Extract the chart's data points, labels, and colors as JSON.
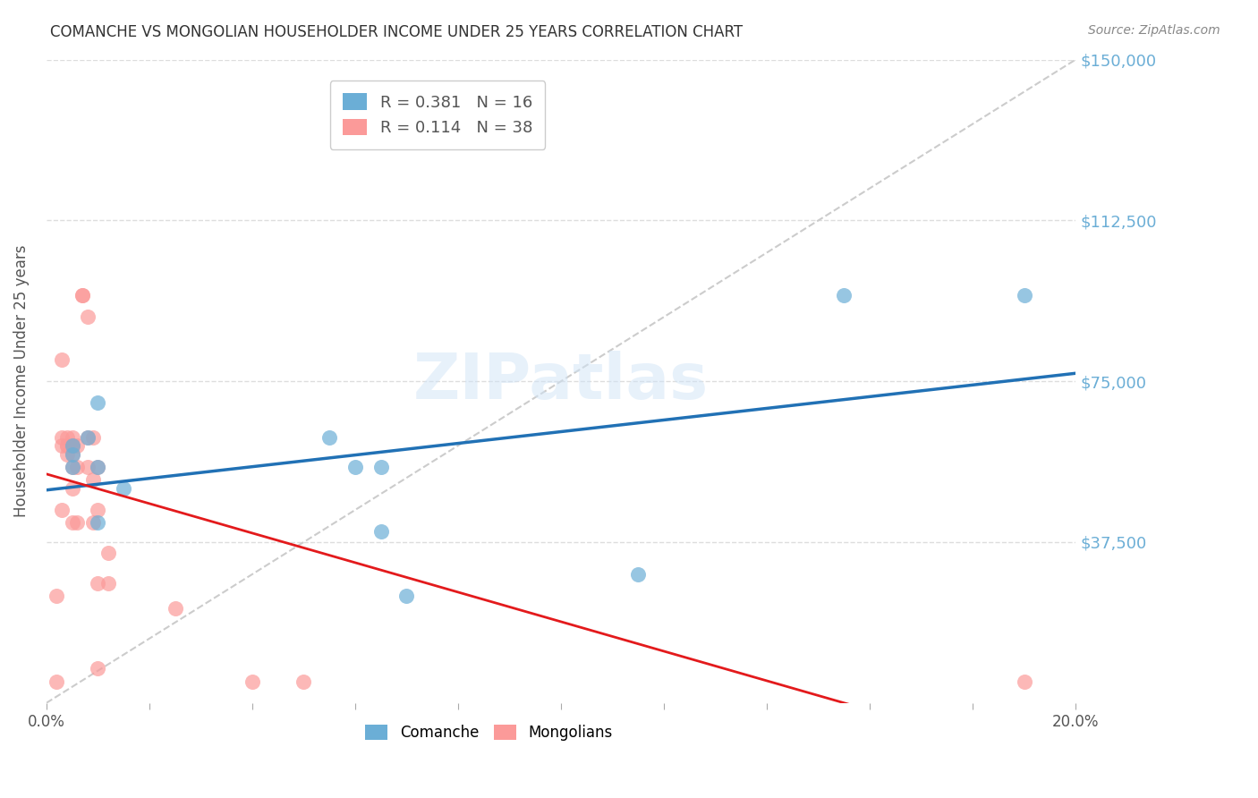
{
  "title": "COMANCHE VS MONGOLIAN HOUSEHOLDER INCOME UNDER 25 YEARS CORRELATION CHART",
  "source": "Source: ZipAtlas.com",
  "ylabel": "Householder Income Under 25 years",
  "ytick_labels": [
    "$37,500",
    "$75,000",
    "$112,500",
    "$150,000"
  ],
  "ytick_values": [
    37500,
    75000,
    112500,
    150000
  ],
  "ymin": 0,
  "ymax": 150000,
  "xmin": 0.0,
  "xmax": 0.2,
  "R_comanche": 0.381,
  "N_comanche": 16,
  "R_mongolians": 0.114,
  "N_mongolians": 38,
  "color_comanche": "#6baed6",
  "color_mongolians": "#fb9a99",
  "color_line_comanche": "#2171b5",
  "color_line_mongolians": "#e31a1c",
  "color_diag": "#cccccc",
  "background_color": "#ffffff",
  "grid_color": "#dddddd",
  "comanche_x": [
    0.005,
    0.005,
    0.005,
    0.008,
    0.01,
    0.01,
    0.01,
    0.015,
    0.055,
    0.06,
    0.065,
    0.065,
    0.07,
    0.115,
    0.155,
    0.19
  ],
  "comanche_y": [
    55000,
    60000,
    58000,
    62000,
    70000,
    55000,
    42000,
    50000,
    62000,
    55000,
    55000,
    40000,
    25000,
    30000,
    95000,
    95000
  ],
  "mongolians_x": [
    0.002,
    0.002,
    0.003,
    0.003,
    0.003,
    0.003,
    0.004,
    0.004,
    0.004,
    0.004,
    0.005,
    0.005,
    0.005,
    0.005,
    0.005,
    0.005,
    0.005,
    0.006,
    0.006,
    0.006,
    0.007,
    0.007,
    0.008,
    0.008,
    0.008,
    0.009,
    0.009,
    0.009,
    0.01,
    0.01,
    0.01,
    0.01,
    0.012,
    0.012,
    0.025,
    0.04,
    0.05,
    0.19
  ],
  "mongolians_y": [
    25000,
    5000,
    80000,
    45000,
    62000,
    60000,
    62000,
    60000,
    60000,
    58000,
    62000,
    60000,
    60000,
    58000,
    55000,
    50000,
    42000,
    60000,
    55000,
    42000,
    95000,
    95000,
    90000,
    62000,
    55000,
    62000,
    52000,
    42000,
    55000,
    45000,
    28000,
    8000,
    35000,
    28000,
    22000,
    5000,
    5000,
    5000
  ]
}
